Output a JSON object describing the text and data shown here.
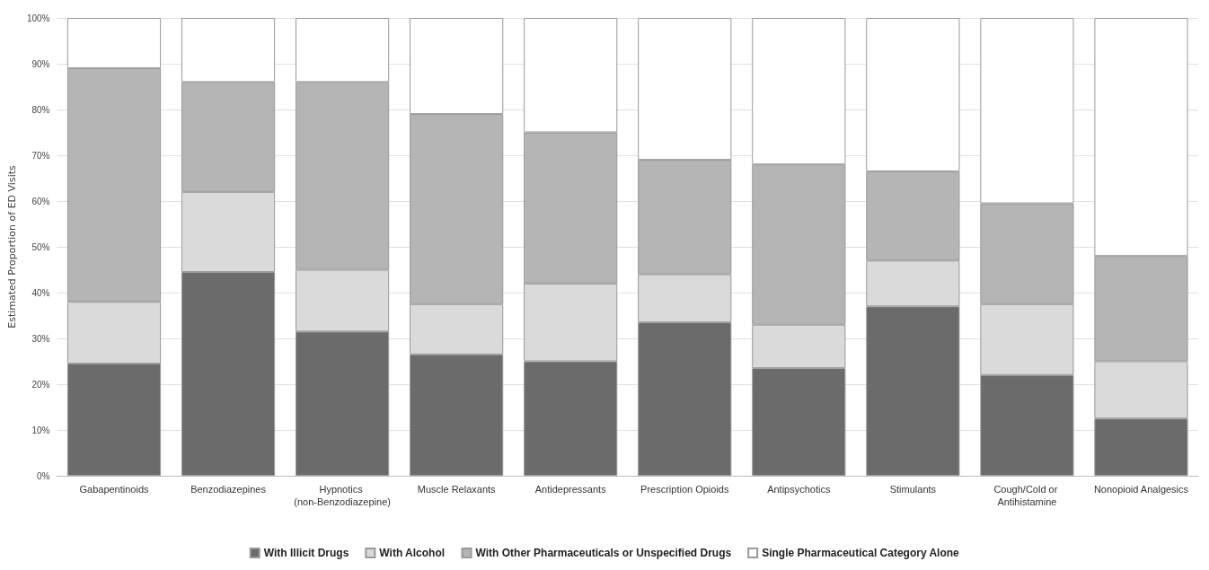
{
  "chart_data": {
    "type": "bar",
    "stacked": true,
    "ylabel": "Estimated Proportion of ED Visits",
    "categories": [
      "Gabapentinoids",
      "Benzodiazepines",
      "Hypnotics (non-Benzodiazepine)",
      "Muscle Relaxants",
      "Antidepressants",
      "Prescription Opioids",
      "Antipsychotics",
      "Stimulants",
      "Cough/Cold or Antihistamine",
      "Nonopioid Analgesics"
    ],
    "series": [
      {
        "name": "With Illicit Drugs",
        "color": "#6b6b6b",
        "values": [
          24.5,
          44.5,
          31.5,
          26.5,
          25,
          33.5,
          23.5,
          37,
          22,
          12.5
        ]
      },
      {
        "name": "With Alcohol",
        "color": "#dadada",
        "values": [
          13.5,
          17.5,
          13.5,
          11,
          17,
          10.5,
          9.5,
          10,
          15.5,
          12.5
        ]
      },
      {
        "name": "With Other Pharmaceuticals or Unspecified Drugs",
        "color": "#b5b5b5",
        "values": [
          51,
          24,
          41,
          41.5,
          33,
          25,
          35,
          19.5,
          22,
          23
        ]
      },
      {
        "name": "Single Pharmaceutical Category Alone",
        "color": "#ffffff",
        "values": [
          11,
          14,
          14,
          21,
          25,
          31,
          32,
          33.5,
          40.5,
          52
        ]
      }
    ],
    "ylim": [
      0,
      100
    ],
    "yticks": [
      {
        "value": 0,
        "label": "0%"
      },
      {
        "value": 10,
        "label": "10%"
      },
      {
        "value": 20,
        "label": "20%"
      },
      {
        "value": 30,
        "label": "30%"
      },
      {
        "value": 40,
        "label": "40%"
      },
      {
        "value": 50,
        "label": "50%"
      },
      {
        "value": 60,
        "label": "60%"
      },
      {
        "value": 70,
        "label": "70%"
      },
      {
        "value": 80,
        "label": "80%"
      },
      {
        "value": 90,
        "label": "90%"
      },
      {
        "value": 100,
        "label": "100%"
      }
    ],
    "grid": "y",
    "legend": "bottom"
  }
}
